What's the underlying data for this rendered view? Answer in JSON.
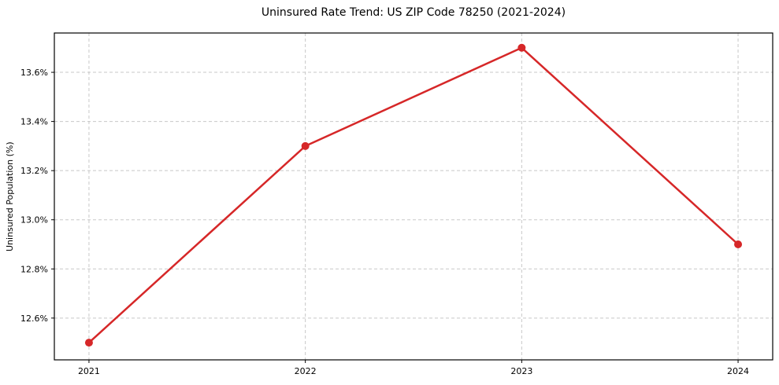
{
  "chart_data": {
    "type": "line",
    "title": "Uninsured Rate Trend: US ZIP Code 78250 (2021-2024)",
    "xlabel": "",
    "ylabel": "Uninsured Population (%)",
    "x": [
      2021,
      2022,
      2023,
      2024
    ],
    "x_tick_labels": [
      "2021",
      "2022",
      "2023",
      "2024"
    ],
    "y_ticks": [
      12.6,
      12.8,
      13.0,
      13.2,
      13.4,
      13.6
    ],
    "y_tick_labels": [
      "12.6%",
      "12.8%",
      "13.0%",
      "13.2%",
      "13.4%",
      "13.6%"
    ],
    "series": [
      {
        "name": "Uninsured Rate",
        "values": [
          12.5,
          13.3,
          13.7,
          12.9
        ],
        "color": "#d62728"
      }
    ],
    "xlim": [
      2020.84,
      2024.16
    ],
    "ylim": [
      12.43,
      13.76
    ],
    "grid": true,
    "legend_position": "none",
    "grid_color": "#c8c8c8",
    "axis_color": "#000000",
    "background": "#ffffff",
    "line_width": 2.5,
    "marker_radius": 5
  }
}
